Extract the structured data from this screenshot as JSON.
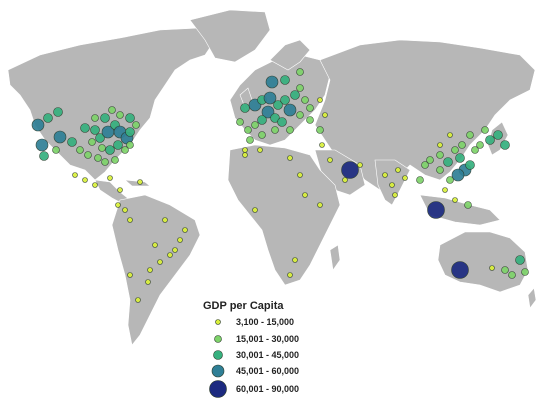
{
  "legend": {
    "title": "GDP per Capita",
    "classes": [
      {
        "label": "3,100 - 15,000",
        "color": "#d9ef3a",
        "size_rank": 1
      },
      {
        "label": "15,001 - 30,000",
        "color": "#7ed36a",
        "size_rank": 2
      },
      {
        "label": "30,001 - 45,000",
        "color": "#36b07e",
        "size_rank": 3
      },
      {
        "label": "45,001 - 60,000",
        "color": "#2f7f96",
        "size_rank": 4
      },
      {
        "label": "60,001 - 90,000",
        "color": "#1c2a80",
        "size_rank": 5
      }
    ]
  },
  "colors": {
    "land": "#b7b7b7",
    "borders": "#ffffff",
    "ocean": "#ffffff"
  }
}
